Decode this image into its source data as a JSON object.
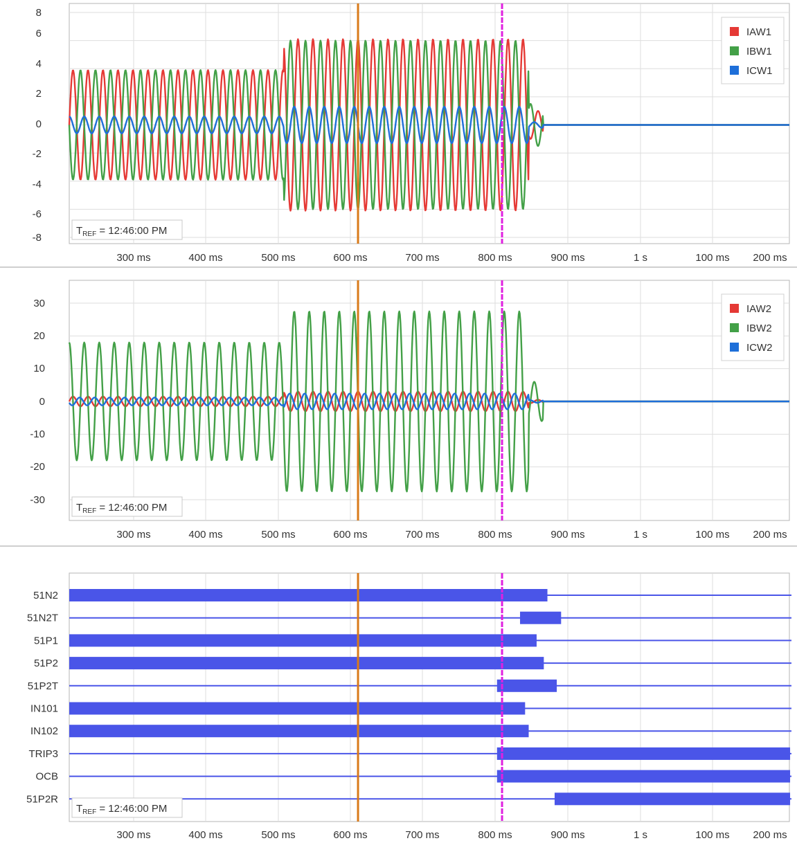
{
  "chart_data": [
    {
      "type": "line",
      "x_tick_labels": [
        "300 ms",
        "400 ms",
        "500 ms",
        "600 ms",
        "700 ms",
        "800 ms",
        "900 ms",
        "1 s",
        "100 ms",
        "200 ms"
      ],
      "y_ticks": [
        8,
        6,
        4,
        2,
        0,
        -2,
        -4,
        -6,
        -8
      ],
      "ylim": [
        -8,
        8
      ],
      "grid": true,
      "legend_position": "top-right",
      "tref_label": "T",
      "tref_sub": "REF",
      "tref_value": "= 12:46:00 PM",
      "series": [
        {
          "name": "IAW1",
          "color": "#e53935",
          "segments": [
            {
              "x": [
                212,
                510
              ],
              "amp": 3.9
            },
            {
              "x": [
                510,
                850
              ],
              "amp": 6.1
            },
            {
              "x": [
                850,
                870
              ],
              "amp": 1.0
            },
            {
              "x": [
                870,
                1212
              ],
              "amp": 0
            }
          ],
          "phase": 0
        },
        {
          "name": "IBW1",
          "color": "#43a047",
          "segments": [
            {
              "x": [
                212,
                510
              ],
              "amp": 3.9
            },
            {
              "x": [
                510,
                850
              ],
              "amp": 6.0
            },
            {
              "x": [
                850,
                870
              ],
              "amp": 1.5
            },
            {
              "x": [
                870,
                1212
              ],
              "amp": 0
            }
          ],
          "phase": 180
        },
        {
          "name": "ICW1",
          "color": "#1e6fd9",
          "segments": [
            {
              "x": [
                212,
                510
              ],
              "amp": 0.6
            },
            {
              "x": [
                510,
                850
              ],
              "amp": 1.3
            },
            {
              "x": [
                850,
                870
              ],
              "amp": 0.2
            },
            {
              "x": [
                870,
                1212
              ],
              "amp": 0
            }
          ],
          "phase": 90
        }
      ]
    },
    {
      "type": "line",
      "x_tick_labels": [
        "300 ms",
        "400 ms",
        "500 ms",
        "600 ms",
        "700 ms",
        "800 ms",
        "900 ms",
        "1 s",
        "100 ms",
        "200 ms"
      ],
      "y_ticks": [
        30,
        20,
        10,
        0,
        -10,
        -20,
        -30
      ],
      "ylim": [
        -34,
        34
      ],
      "grid": true,
      "legend_position": "top-right",
      "tref_label": "T",
      "tref_sub": "REF",
      "tref_value": "= 12:46:00 PM",
      "series": [
        {
          "name": "IAW2",
          "color": "#e53935",
          "segments": [
            {
              "x": [
                212,
                510
              ],
              "amp": 1.5
            },
            {
              "x": [
                510,
                850
              ],
              "amp": 3.0
            },
            {
              "x": [
                850,
                870
              ],
              "amp": 0.5
            },
            {
              "x": [
                870,
                1212
              ],
              "amp": 0
            }
          ],
          "phase": 0
        },
        {
          "name": "IBW2",
          "color": "#43a047",
          "segments": [
            {
              "x": [
                212,
                510
              ],
              "amp": 18
            },
            {
              "x": [
                510,
                850
              ],
              "amp": 27.5
            },
            {
              "x": [
                850,
                870
              ],
              "amp": 6
            },
            {
              "x": [
                870,
                1212
              ],
              "amp": 0
            }
          ],
          "phase": 90
        },
        {
          "name": "ICW2",
          "color": "#1e6fd9",
          "segments": [
            {
              "x": [
                212,
                510
              ],
              "amp": 1.2
            },
            {
              "x": [
                510,
                850
              ],
              "amp": 2.4
            },
            {
              "x": [
                850,
                870
              ],
              "amp": 0.4
            },
            {
              "x": [
                870,
                1212
              ],
              "amp": 0
            }
          ],
          "phase": 200
        }
      ]
    },
    {
      "type": "digital",
      "x_tick_labels": [
        "300 ms",
        "400 ms",
        "500 ms",
        "600 ms",
        "700 ms",
        "800 ms",
        "900 ms",
        "1 s",
        "100 ms",
        "200 ms"
      ],
      "grid": true,
      "tref_label": "T",
      "tref_sub": "REF",
      "tref_value": "= 12:46:00 PM",
      "color": "#4a55e8",
      "channels": [
        {
          "name": "51N2",
          "on": [
            [
              212,
              876
            ]
          ]
        },
        {
          "name": "51N2T",
          "on": [
            [
              838,
              895
            ]
          ]
        },
        {
          "name": "51P1",
          "on": [
            [
              212,
              861
            ]
          ]
        },
        {
          "name": "51P2",
          "on": [
            [
              212,
              871
            ]
          ]
        },
        {
          "name": "51P2T",
          "on": [
            [
              806,
              889
            ]
          ]
        },
        {
          "name": "IN101",
          "on": [
            [
              212,
              845
            ]
          ]
        },
        {
          "name": "IN102",
          "on": [
            [
              212,
              850
            ]
          ]
        },
        {
          "name": "TRIP3",
          "on": [
            [
              806,
              1213
            ]
          ]
        },
        {
          "name": "OCB",
          "on": [
            [
              806,
              1213
            ]
          ]
        },
        {
          "name": "51P2R",
          "on": [
            [
              886,
              1213
            ]
          ]
        }
      ]
    }
  ],
  "cursors": [
    {
      "name": "cursor-1",
      "x": 613,
      "color": "#d97a1a",
      "style": "solid"
    },
    {
      "name": "cursor-2",
      "x": 813,
      "color": "#e020e0",
      "style": "dashed"
    }
  ]
}
